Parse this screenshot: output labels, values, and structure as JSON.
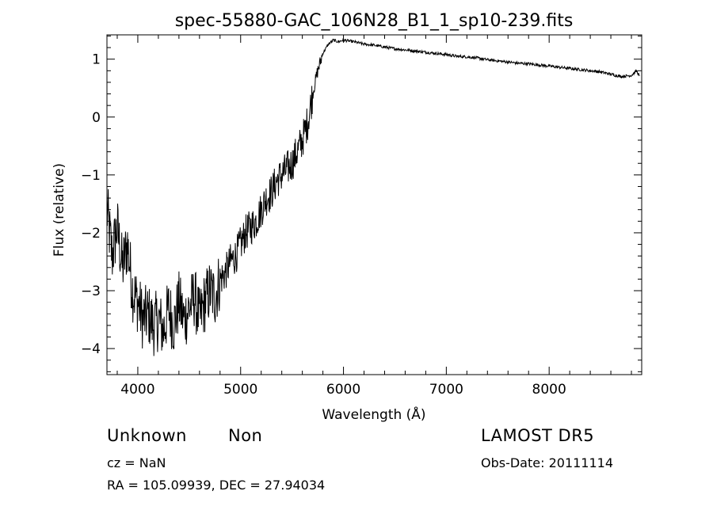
{
  "chart_data": {
    "type": "line",
    "title": "spec-55880-GAC_106N28_B1_1_sp10-239.fits",
    "xlabel": "Wavelength (Å)",
    "ylabel": "Flux (relative)",
    "xlim": [
      3700,
      8900
    ],
    "ylim": [
      -4.45,
      1.42
    ],
    "xticks": [
      4000,
      5000,
      6000,
      7000,
      8000
    ],
    "yticks": [
      -4,
      -3,
      -2,
      -1,
      0,
      1
    ],
    "series": [
      {
        "x": [
          3700,
          3750,
          3800,
          3850,
          3900,
          3950,
          4000,
          4050,
          4100,
          4150,
          4200,
          4250,
          4300,
          4350,
          4400,
          4450,
          4500,
          4550,
          4600,
          4650,
          4700,
          4750,
          4800,
          4850,
          4900,
          4950,
          5000,
          5050,
          5100,
          5150,
          5200,
          5250,
          5300,
          5350,
          5400,
          5450,
          5500,
          5550,
          5600,
          5650,
          5700,
          5750,
          5800,
          5850,
          5900,
          5950,
          6000,
          6100,
          6200,
          6300,
          6400,
          6500,
          6600,
          6700,
          6800,
          6900,
          7000,
          7100,
          7200,
          7300,
          7400,
          7500,
          7600,
          7700,
          7800,
          7900,
          8000,
          8100,
          8200,
          8300,
          8400,
          8500,
          8600,
          8700,
          8800,
          8850,
          8880
        ],
        "y": [
          -1.6,
          -2.4,
          -1.9,
          -2.6,
          -2.2,
          -3.0,
          -3.2,
          -3.5,
          -3.4,
          -3.6,
          -3.5,
          -3.7,
          -3.3,
          -3.6,
          -3.2,
          -3.5,
          -3.3,
          -3.1,
          -3.5,
          -3.2,
          -3.0,
          -3.1,
          -2.8,
          -2.7,
          -2.5,
          -2.4,
          -2.2,
          -2.0,
          -1.9,
          -1.8,
          -1.6,
          -1.4,
          -1.3,
          -1.1,
          -1.0,
          -0.9,
          -0.8,
          -0.6,
          -0.4,
          -0.1,
          0.4,
          0.8,
          1.1,
          1.25,
          1.33,
          1.3,
          1.33,
          1.3,
          1.26,
          1.24,
          1.21,
          1.18,
          1.16,
          1.14,
          1.12,
          1.1,
          1.08,
          1.05,
          1.04,
          1.02,
          0.99,
          0.97,
          0.95,
          0.93,
          0.92,
          0.9,
          0.88,
          0.86,
          0.84,
          0.82,
          0.8,
          0.78,
          0.74,
          0.7,
          0.72,
          0.8,
          0.7
        ]
      }
    ]
  },
  "footer": {
    "class": "Unknown",
    "subclass": "Non",
    "survey": "LAMOST DR5",
    "cz": "cz = NaN",
    "obs_date": "Obs-Date: 20111114",
    "radec": "RA = 105.09939, DEC =  27.94034"
  }
}
